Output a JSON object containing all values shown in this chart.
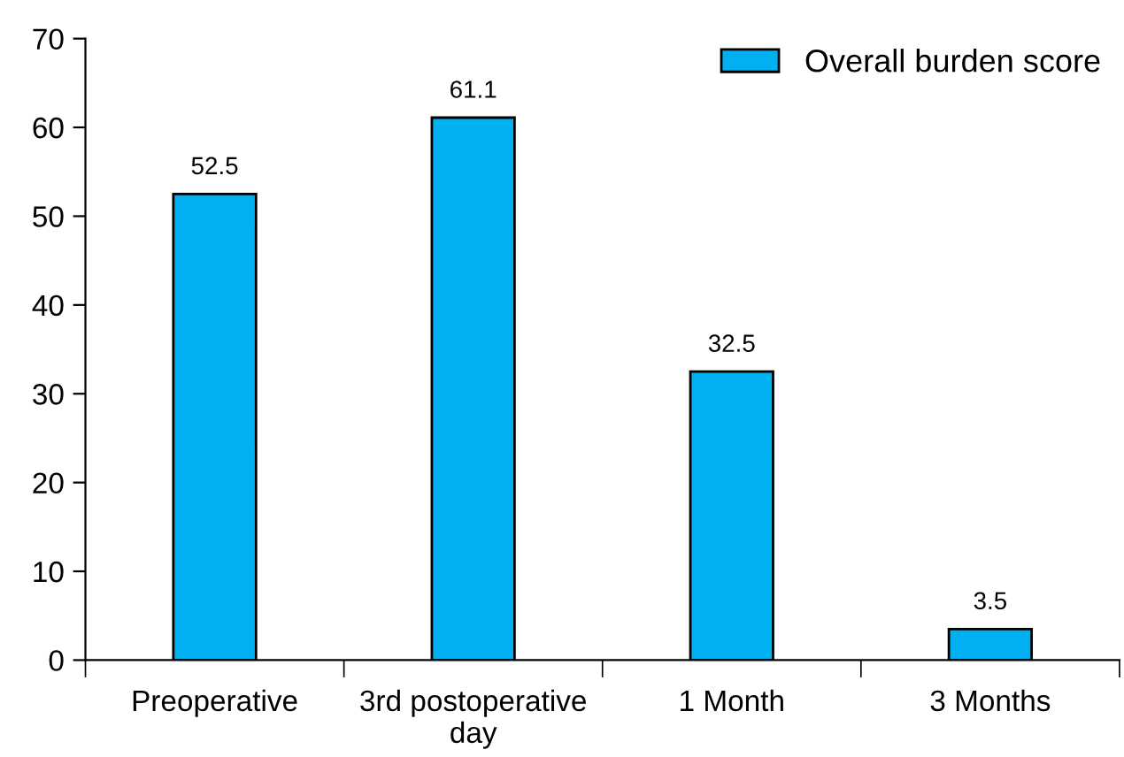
{
  "chart_data": {
    "type": "bar",
    "categories": [
      "Preoperative",
      "3rd postoperative\nday",
      "1 Month",
      "3 Months"
    ],
    "series": [
      {
        "name": "Overall burden score",
        "color": "#00b0f0",
        "values": [
          52.5,
          61.1,
          32.5,
          3.5
        ]
      }
    ],
    "ylim": [
      0,
      70
    ],
    "yticks": [
      0,
      10,
      20,
      30,
      40,
      50,
      60,
      70
    ],
    "data_labels": true,
    "legend": "top right",
    "grid": false
  }
}
